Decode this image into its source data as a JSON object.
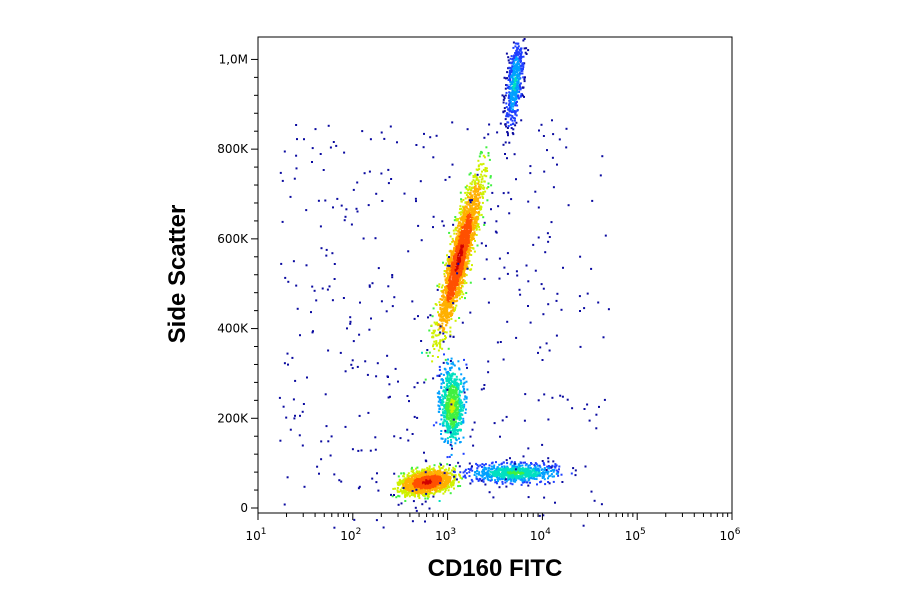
{
  "chart_data": {
    "type": "scatter",
    "title": "",
    "xlabel": "CD160 FITC",
    "ylabel": "Side Scatter",
    "x_scale": "log",
    "xlim": [
      10,
      1000000
    ],
    "ylim": [
      0,
      1050000
    ],
    "x_ticks": [
      {
        "value": 10,
        "base": "10",
        "exp": "1"
      },
      {
        "value": 100,
        "base": "10",
        "exp": "2"
      },
      {
        "value": 1000,
        "base": "10",
        "exp": "3"
      },
      {
        "value": 10000,
        "base": "10",
        "exp": "4"
      },
      {
        "value": 100000,
        "base": "10",
        "exp": "5"
      },
      {
        "value": 1000000,
        "base": "10",
        "exp": "6"
      }
    ],
    "y_ticks": [
      {
        "value": 0,
        "label": "0"
      },
      {
        "value": 200000,
        "label": "200K"
      },
      {
        "value": 400000,
        "label": "400K"
      },
      {
        "value": 600000,
        "label": "600K"
      },
      {
        "value": 800000,
        "label": "800K"
      },
      {
        "value": 1000000,
        "label": "1,0M"
      }
    ],
    "grid": false,
    "colormap": [
      "#0a0aa0",
      "#1f3fff",
      "#00a0ff",
      "#00e0c0",
      "#40f040",
      "#d0f000",
      "#ffb000",
      "#ff5000",
      "#d00000"
    ],
    "populations": [
      {
        "center_x": 600,
        "center_y": 60000,
        "density": 1.0
      },
      {
        "center_x": 1100,
        "center_y": 230000,
        "density": 0.55
      },
      {
        "center_x": 1300,
        "center_y": 560000,
        "density": 0.95
      },
      {
        "center_x": 5000,
        "center_y": 80000,
        "density": 0.45
      },
      {
        "center_x": 5000,
        "center_y": 950000,
        "density": 0.35
      }
    ]
  }
}
